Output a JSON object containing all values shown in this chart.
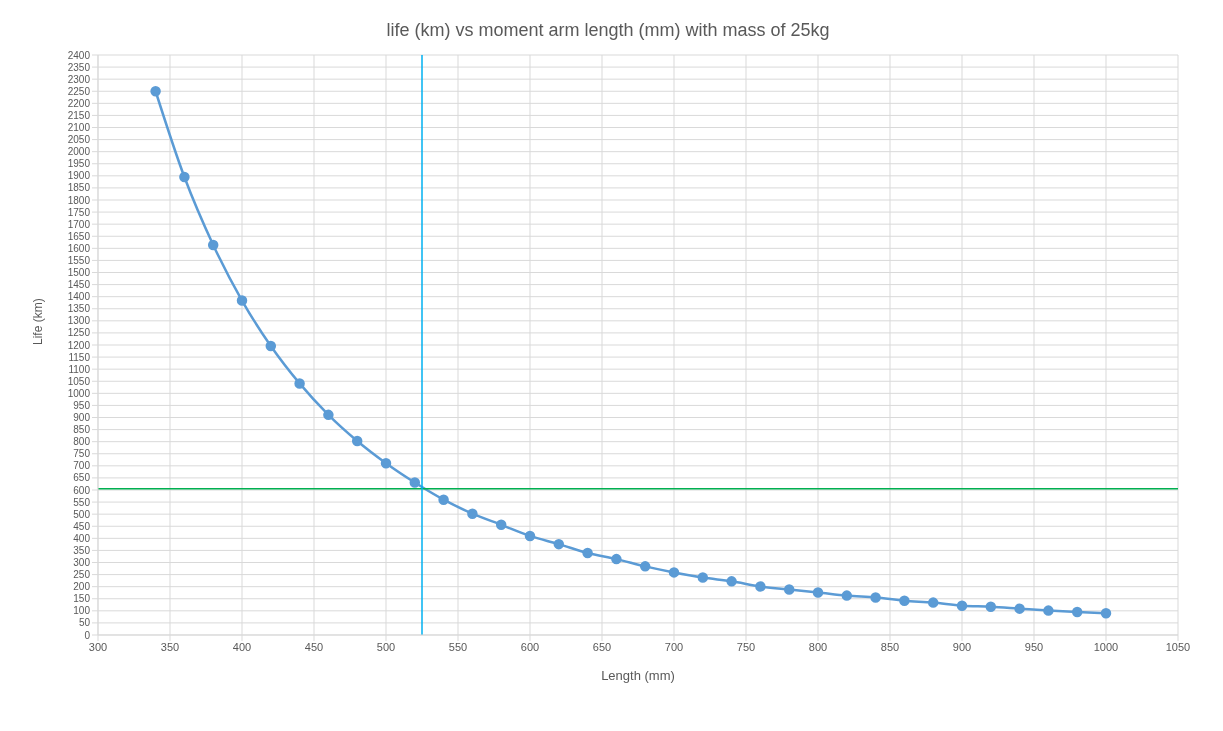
{
  "chart_data": {
    "type": "line",
    "title": "life (km) vs moment arm length (mm) with mass of 25kg",
    "xlabel": "Length (mm)",
    "ylabel": "Life (km)",
    "x": [
      340,
      360,
      380,
      400,
      420,
      440,
      460,
      480,
      500,
      520,
      540,
      560,
      580,
      600,
      620,
      640,
      660,
      680,
      700,
      720,
      740,
      760,
      780,
      800,
      820,
      840,
      860,
      880,
      900,
      920,
      940,
      960,
      980,
      1000
    ],
    "series": [
      {
        "color": "#5b9bd5",
        "values": [
          2250,
          1895,
          1614,
          1384,
          1196,
          1041,
          911,
          803,
          711,
          631,
          560,
          502,
          456,
          410,
          376,
          339,
          314,
          284,
          259,
          238,
          222,
          201,
          188,
          176,
          163,
          155,
          142,
          134,
          121,
          117,
          109,
          101,
          95,
          90
        ]
      }
    ],
    "xlim": [
      300,
      1050
    ],
    "xticks": [
      300,
      350,
      400,
      450,
      500,
      550,
      600,
      650,
      700,
      750,
      800,
      850,
      900,
      950,
      1000,
      1050
    ],
    "ylim": [
      0,
      2400
    ],
    "yticks": [
      0,
      50,
      100,
      150,
      200,
      250,
      300,
      350,
      400,
      450,
      500,
      550,
      600,
      650,
      700,
      750,
      800,
      850,
      900,
      950,
      1000,
      1050,
      1100,
      1150,
      1200,
      1250,
      1300,
      1350,
      1400,
      1450,
      1500,
      1550,
      1600,
      1650,
      1700,
      1750,
      1800,
      1850,
      1900,
      1950,
      2000,
      2050,
      2100,
      2150,
      2200,
      2250,
      2300,
      2350,
      2400
    ],
    "ref_lines": [
      {
        "axis": "y",
        "value": 605,
        "color": "#00b050"
      },
      {
        "axis": "x",
        "value": 525,
        "color": "#00b0f0"
      }
    ],
    "grid": true,
    "legend": false,
    "marker": "circle",
    "line_style": "solid"
  }
}
